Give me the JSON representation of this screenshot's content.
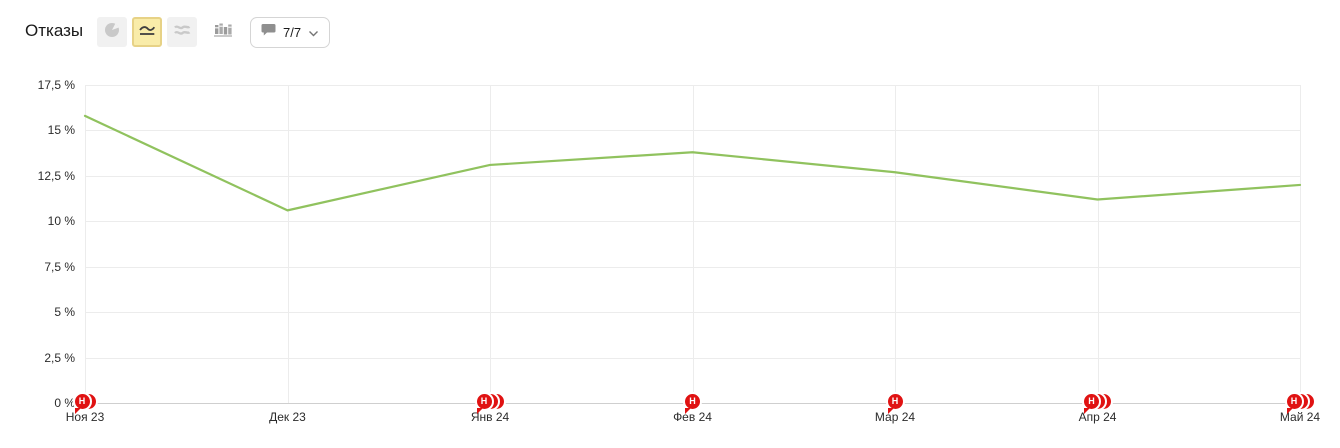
{
  "header": {
    "title": "Отказы",
    "chart_types": {
      "pie": {
        "selected": false
      },
      "line": {
        "selected": true
      },
      "stacked_area": {
        "selected": false
      },
      "columns": {
        "selected": false
      }
    },
    "comments_dropdown": {
      "label": "7/7",
      "icon": "comment-bubble-icon"
    }
  },
  "colors": {
    "line": "#90c25e",
    "marker_red": "#e01212",
    "selected_button_bg": "#f9eca9",
    "selected_button_border": "#e7d286",
    "gridline": "#ececec",
    "axis_line": "#cfcfcf"
  },
  "chart_data": {
    "type": "line",
    "title": "Отказы",
    "x": [
      "Ноя 23",
      "Дек 23",
      "Янв 24",
      "Фев 24",
      "Мар 24",
      "Апр 24",
      "Май 24"
    ],
    "series": [
      {
        "name": "Отказы",
        "color": "#90c25e",
        "values": [
          15.8,
          10.6,
          13.1,
          13.8,
          12.7,
          11.2,
          12.0
        ]
      }
    ],
    "unit": "%",
    "ylim": [
      0,
      17.5
    ],
    "ytick_step": 2.5,
    "ytick_labels": [
      "0 %",
      "2,5 %",
      "5 %",
      "7,5 %",
      "10 %",
      "12,5 %",
      "15 %",
      "17,5 %"
    ],
    "grid": true,
    "legend": "none",
    "annotations": [
      {
        "x": "Ноя 23",
        "icon": "comment-marker",
        "stack": 2,
        "letter": "Н"
      },
      {
        "x": "Янв 24",
        "icon": "comment-marker",
        "stack": 3,
        "letter": "Н"
      },
      {
        "x": "Фев 24",
        "icon": "comment-marker",
        "stack": 1,
        "letter": "Н"
      },
      {
        "x": "Мар 24",
        "icon": "comment-marker",
        "stack": 1,
        "letter": "Н"
      },
      {
        "x": "Апр 24",
        "icon": "comment-marker",
        "stack": 3,
        "letter": "Н"
      },
      {
        "x": "Май 24",
        "icon": "comment-marker",
        "stack": 3,
        "letter": "Н"
      }
    ]
  }
}
